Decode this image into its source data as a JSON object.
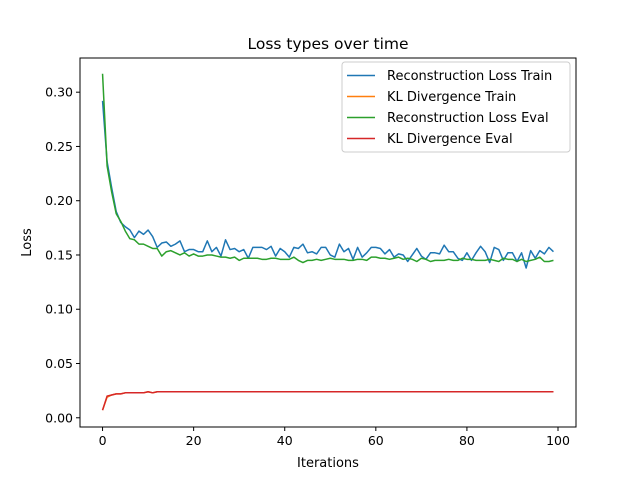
{
  "chart_data": {
    "type": "line",
    "title": "Loss types over time",
    "xlabel": "Iterations",
    "ylabel": "Loss",
    "xlim": [
      -4.95,
      103.95
    ],
    "ylim": [
      -0.0085,
      0.3315
    ],
    "xticks": [
      0,
      20,
      40,
      60,
      80,
      100
    ],
    "yticks": [
      0.0,
      0.05,
      0.1,
      0.15,
      0.2,
      0.25,
      0.3
    ],
    "ytick_format": 2,
    "grid": false,
    "legend_position": "top-right",
    "series": [
      {
        "name": "Reconstruction Loss Train",
        "color": "#1f77b4",
        "values": [
          0.292,
          0.236,
          0.212,
          0.19,
          0.18,
          0.176,
          0.173,
          0.166,
          0.172,
          0.169,
          0.173,
          0.167,
          0.157,
          0.161,
          0.162,
          0.158,
          0.16,
          0.163,
          0.153,
          0.155,
          0.155,
          0.153,
          0.153,
          0.163,
          0.153,
          0.157,
          0.149,
          0.164,
          0.155,
          0.156,
          0.153,
          0.155,
          0.147,
          0.157,
          0.157,
          0.157,
          0.155,
          0.158,
          0.149,
          0.156,
          0.153,
          0.148,
          0.157,
          0.156,
          0.16,
          0.152,
          0.153,
          0.151,
          0.157,
          0.157,
          0.15,
          0.148,
          0.16,
          0.153,
          0.156,
          0.146,
          0.157,
          0.148,
          0.152,
          0.157,
          0.157,
          0.156,
          0.151,
          0.155,
          0.148,
          0.151,
          0.15,
          0.144,
          0.15,
          0.156,
          0.149,
          0.146,
          0.152,
          0.152,
          0.151,
          0.159,
          0.153,
          0.153,
          0.147,
          0.145,
          0.152,
          0.145,
          0.152,
          0.158,
          0.153,
          0.143,
          0.157,
          0.155,
          0.145,
          0.152,
          0.152,
          0.144,
          0.152,
          0.138,
          0.154,
          0.147,
          0.154,
          0.151,
          0.157,
          0.153
        ]
      },
      {
        "name": "KL Divergence Train",
        "color": "#ff7f0e",
        "values": [
          0.007,
          0.019,
          0.021,
          0.022,
          0.022,
          0.023,
          0.023,
          0.023,
          0.023,
          0.023,
          0.024,
          0.023,
          0.024,
          0.024,
          0.024,
          0.024,
          0.024,
          0.024,
          0.024,
          0.024,
          0.024,
          0.024,
          0.024,
          0.024,
          0.024,
          0.024,
          0.024,
          0.024,
          0.024,
          0.024,
          0.024,
          0.024,
          0.024,
          0.024,
          0.024,
          0.024,
          0.024,
          0.024,
          0.024,
          0.024,
          0.024,
          0.024,
          0.024,
          0.024,
          0.024,
          0.024,
          0.024,
          0.024,
          0.024,
          0.024,
          0.024,
          0.024,
          0.024,
          0.024,
          0.024,
          0.024,
          0.024,
          0.024,
          0.024,
          0.024,
          0.024,
          0.024,
          0.024,
          0.024,
          0.024,
          0.024,
          0.024,
          0.024,
          0.024,
          0.024,
          0.024,
          0.024,
          0.024,
          0.024,
          0.024,
          0.024,
          0.024,
          0.024,
          0.024,
          0.024,
          0.024,
          0.024,
          0.024,
          0.024,
          0.024,
          0.024,
          0.024,
          0.024,
          0.024,
          0.024,
          0.024,
          0.024,
          0.024,
          0.024,
          0.024,
          0.024,
          0.024,
          0.024,
          0.024,
          0.024
        ]
      },
      {
        "name": "Reconstruction Loss Eval",
        "color": "#2ca02c",
        "values": [
          0.317,
          0.232,
          0.208,
          0.188,
          0.181,
          0.172,
          0.165,
          0.164,
          0.16,
          0.16,
          0.158,
          0.156,
          0.156,
          0.149,
          0.153,
          0.154,
          0.152,
          0.15,
          0.152,
          0.149,
          0.151,
          0.149,
          0.149,
          0.15,
          0.15,
          0.149,
          0.148,
          0.148,
          0.147,
          0.148,
          0.145,
          0.147,
          0.147,
          0.147,
          0.147,
          0.146,
          0.146,
          0.147,
          0.147,
          0.146,
          0.146,
          0.146,
          0.148,
          0.145,
          0.143,
          0.145,
          0.145,
          0.146,
          0.145,
          0.146,
          0.147,
          0.146,
          0.146,
          0.146,
          0.145,
          0.145,
          0.146,
          0.146,
          0.145,
          0.148,
          0.148,
          0.147,
          0.147,
          0.146,
          0.147,
          0.148,
          0.146,
          0.147,
          0.146,
          0.144,
          0.147,
          0.146,
          0.144,
          0.145,
          0.145,
          0.145,
          0.146,
          0.145,
          0.145,
          0.147,
          0.146,
          0.146,
          0.145,
          0.145,
          0.145,
          0.146,
          0.145,
          0.144,
          0.147,
          0.146,
          0.146,
          0.144,
          0.146,
          0.144,
          0.145,
          0.146,
          0.148,
          0.144,
          0.144,
          0.145
        ]
      },
      {
        "name": "KL Divergence Eval",
        "color": "#d62728",
        "values": [
          0.007,
          0.02,
          0.021,
          0.022,
          0.022,
          0.023,
          0.023,
          0.023,
          0.023,
          0.023,
          0.024,
          0.023,
          0.024,
          0.024,
          0.024,
          0.024,
          0.024,
          0.024,
          0.024,
          0.024,
          0.024,
          0.024,
          0.024,
          0.024,
          0.024,
          0.024,
          0.024,
          0.024,
          0.024,
          0.024,
          0.024,
          0.024,
          0.024,
          0.024,
          0.024,
          0.024,
          0.024,
          0.024,
          0.024,
          0.024,
          0.024,
          0.024,
          0.024,
          0.024,
          0.024,
          0.024,
          0.024,
          0.024,
          0.024,
          0.024,
          0.024,
          0.024,
          0.024,
          0.024,
          0.024,
          0.024,
          0.024,
          0.024,
          0.024,
          0.024,
          0.024,
          0.024,
          0.024,
          0.024,
          0.024,
          0.024,
          0.024,
          0.024,
          0.024,
          0.024,
          0.024,
          0.024,
          0.024,
          0.024,
          0.024,
          0.024,
          0.024,
          0.024,
          0.024,
          0.024,
          0.024,
          0.024,
          0.024,
          0.024,
          0.024,
          0.024,
          0.024,
          0.024,
          0.024,
          0.024,
          0.024,
          0.024,
          0.024,
          0.024,
          0.024,
          0.024,
          0.024,
          0.024,
          0.024,
          0.024
        ]
      }
    ]
  }
}
